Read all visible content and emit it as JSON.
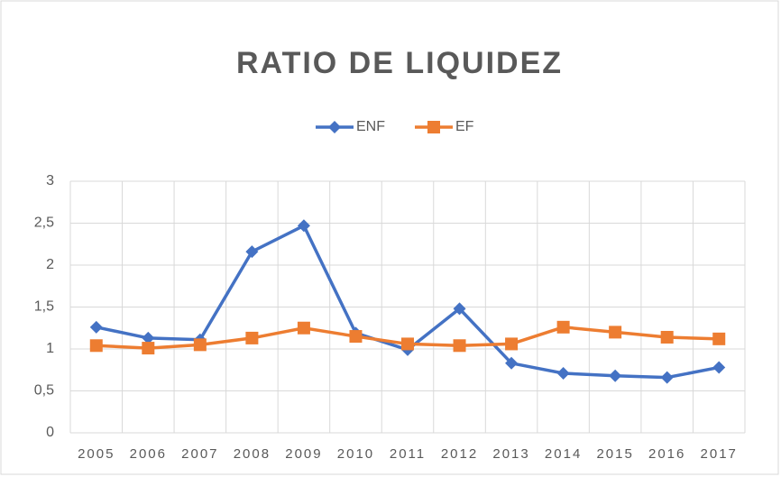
{
  "chart_data": {
    "type": "line",
    "title": "RATIO DE LIQUIDEZ",
    "categories": [
      "2005",
      "2006",
      "2007",
      "2008",
      "2009",
      "2010",
      "2011",
      "2012",
      "2013",
      "2014",
      "2015",
      "2016",
      "2017"
    ],
    "series": [
      {
        "name": "ENF",
        "color": "#4472c4",
        "marker": "diamond",
        "values": [
          1.26,
          1.13,
          1.11,
          2.16,
          2.47,
          1.19,
          0.99,
          1.48,
          0.83,
          0.71,
          0.68,
          0.66,
          0.78
        ]
      },
      {
        "name": "EF",
        "color": "#ed7d31",
        "marker": "square",
        "values": [
          1.04,
          1.01,
          1.05,
          1.13,
          1.25,
          1.15,
          1.06,
          1.04,
          1.06,
          1.26,
          1.2,
          1.14,
          1.12
        ]
      }
    ],
    "ylim": [
      0,
      3
    ],
    "yticks": [
      0,
      {
        "value": 0.5,
        "label": "0,5"
      },
      1,
      {
        "value": 1.5,
        "label": "1,5"
      },
      2,
      {
        "value": 2.5,
        "label": "2,5"
      },
      3
    ],
    "grid": true,
    "legend": "top"
  }
}
